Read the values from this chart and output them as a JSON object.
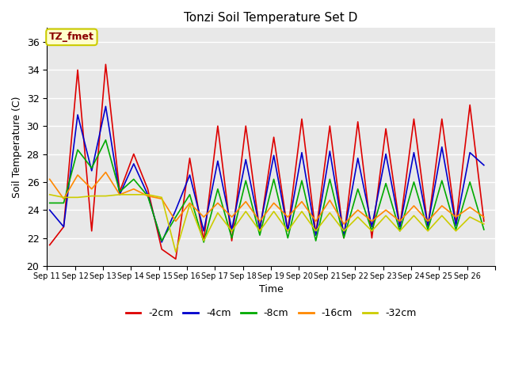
{
  "title": "Tonzi Soil Temperature Set D",
  "xlabel": "Time",
  "ylabel": "Soil Temperature (C)",
  "ylim": [
    20,
    37
  ],
  "yticks": [
    20,
    22,
    24,
    26,
    28,
    30,
    32,
    34,
    36
  ],
  "bg_color": "#e8e8e8",
  "annotation_text": "TZ_fmet",
  "annotation_color": "#8b0000",
  "annotation_bg": "#ffffcc",
  "annotation_border": "#cccc00",
  "series_colors": {
    "-2cm": "#dd0000",
    "-4cm": "#0000cc",
    "-8cm": "#00aa00",
    "-16cm": "#ff8800",
    "-32cm": "#cccc00"
  },
  "x_labels": [
    "Sep 11",
    "Sep 12",
    "Sep 13",
    "Sep 14",
    "Sep 15",
    "Sep 16",
    "Sep 17",
    "Sep 18",
    "Sep 19",
    "Sep 20",
    "Sep 21",
    "Sep 22",
    "Sep 23",
    "Sep 24",
    "Sep 25",
    "Sep 26"
  ],
  "series": {
    "-2cm": [
      21.5,
      22.8,
      34.0,
      22.5,
      34.4,
      25.3,
      28.0,
      25.5,
      21.2,
      20.5,
      27.7,
      21.8,
      30.0,
      21.8,
      30.0,
      22.5,
      29.2,
      22.5,
      30.5,
      22.3,
      30.0,
      22.0,
      30.3,
      22.0,
      29.8,
      22.8,
      30.5,
      22.8,
      30.5,
      23.0,
      31.5,
      23.2
    ],
    "-4cm": [
      24.0,
      22.8,
      30.8,
      26.8,
      31.4,
      25.1,
      27.3,
      25.1,
      21.7,
      24.0,
      26.5,
      22.5,
      27.5,
      22.6,
      27.6,
      22.7,
      27.9,
      22.5,
      28.1,
      22.2,
      28.2,
      22.2,
      27.7,
      22.8,
      28.0,
      22.8,
      28.1,
      22.9,
      28.5,
      22.9,
      28.1,
      27.2
    ],
    "-8cm": [
      24.5,
      24.5,
      28.3,
      27.0,
      29.0,
      25.3,
      26.2,
      25.0,
      21.8,
      23.5,
      25.1,
      21.7,
      25.5,
      22.0,
      26.1,
      22.2,
      26.2,
      22.0,
      26.1,
      21.8,
      26.2,
      22.0,
      25.5,
      22.5,
      25.9,
      22.5,
      26.0,
      22.6,
      26.1,
      22.6,
      26.0,
      22.6
    ],
    "-16cm": [
      26.2,
      24.8,
      26.5,
      25.5,
      26.7,
      25.1,
      25.5,
      25.0,
      24.8,
      23.2,
      24.5,
      23.5,
      24.5,
      23.5,
      24.6,
      23.2,
      24.5,
      23.5,
      24.6,
      23.2,
      24.7,
      23.0,
      24.0,
      23.2,
      24.0,
      23.2,
      24.3,
      23.2,
      24.3,
      23.5,
      24.2,
      23.5
    ],
    "-32cm": [
      25.1,
      24.9,
      24.9,
      25.0,
      25.0,
      25.1,
      25.1,
      25.1,
      24.9,
      21.0,
      24.4,
      21.8,
      23.8,
      22.5,
      23.9,
      22.5,
      23.9,
      22.5,
      23.9,
      22.5,
      23.8,
      22.5,
      23.5,
      22.5,
      23.6,
      22.5,
      23.6,
      22.5,
      23.6,
      22.5,
      23.5,
      23.0
    ]
  },
  "n_points_per_day": 2,
  "n_days": 16
}
